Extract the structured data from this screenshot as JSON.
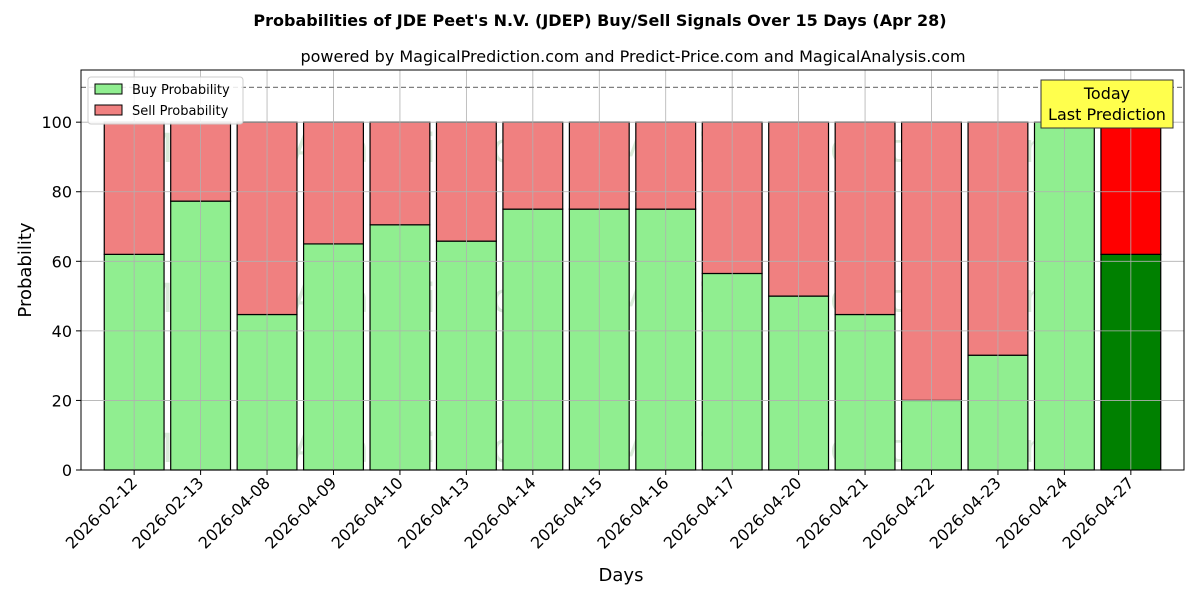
{
  "chart_data": {
    "type": "bar",
    "stacked": true,
    "title": "Probabilities of JDE Peet's N.V. (JDEP) Buy/Sell Signals Over 15 Days (Apr 28)",
    "subtitle": "powered by MagicalPrediction.com and Predict-Price.com and MagicalAnalysis.com",
    "xlabel": "Days",
    "ylabel": "Probability",
    "ylim": [
      0,
      115
    ],
    "yticks": [
      0,
      20,
      40,
      60,
      80,
      100
    ],
    "grid": true,
    "legend_position": "top-left",
    "categories": [
      "2026-02-12",
      "2026-02-13",
      "2026-04-08",
      "2026-04-09",
      "2026-04-10",
      "2026-04-13",
      "2026-04-14",
      "2026-04-15",
      "2026-04-16",
      "2026-04-17",
      "2026-04-20",
      "2026-04-21",
      "2026-04-22",
      "2026-04-23",
      "2026-04-24",
      "2026-04-27"
    ],
    "series": [
      {
        "name": "Buy Probability",
        "color": "#90ee90",
        "values": [
          62,
          77.3,
          44.7,
          65,
          70.5,
          65.8,
          75,
          75,
          75,
          56.5,
          50,
          44.7,
          20,
          33,
          100,
          62
        ]
      },
      {
        "name": "Sell Probability",
        "color": "#f08080",
        "values": [
          38,
          22.7,
          55.3,
          35,
          29.5,
          34.2,
          25,
          25,
          25,
          43.5,
          50,
          55.3,
          80,
          67,
          0,
          38
        ]
      }
    ],
    "highlight": {
      "index": 15,
      "buy_color": "#008000",
      "sell_color": "#ff0000"
    },
    "reference_line": {
      "y": 110,
      "style": "dashed",
      "color": "#808080"
    },
    "annotation": {
      "lines": [
        "Today",
        "Last Prediction"
      ],
      "background": "#ffff4d"
    },
    "watermarks": [
      "MagicalAnalysis.com",
      "MagicalPrediction.com"
    ]
  }
}
